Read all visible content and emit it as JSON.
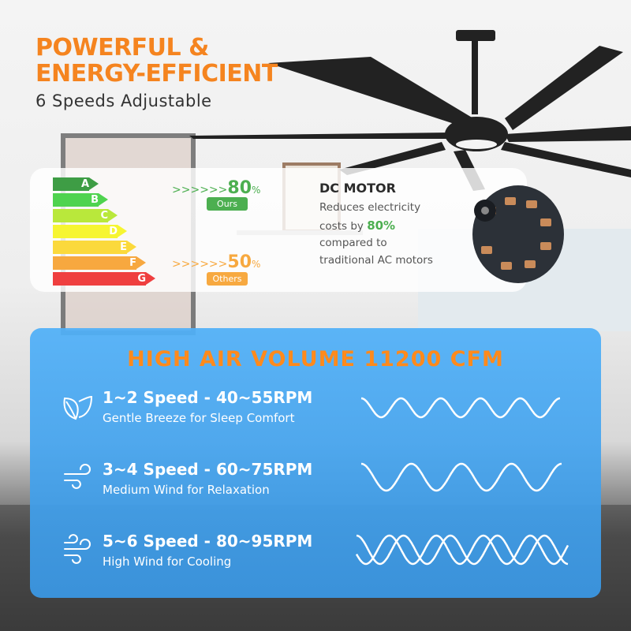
{
  "header": {
    "title_line1": "POWERFUL &",
    "title_line2": "ENERGY-EFFICIENT",
    "subtitle": "6 Speeds Adjustable"
  },
  "energy": {
    "classes": [
      {
        "label": "A",
        "color": "#3e9d45"
      },
      {
        "label": "B",
        "color": "#4fd34f"
      },
      {
        "label": "C",
        "color": "#b9e83b"
      },
      {
        "label": "D",
        "color": "#f6f532"
      },
      {
        "label": "E",
        "color": "#fbd93c"
      },
      {
        "label": "F",
        "color": "#f7a83f"
      },
      {
        "label": "G",
        "color": "#ef3f3f"
      }
    ],
    "ours": {
      "arrows": ">>>>>>",
      "value": "80",
      "unit": "%",
      "label": "Ours",
      "color": "#4caf50"
    },
    "others": {
      "arrows": ">>>>>>",
      "value": "50",
      "unit": "%",
      "label": "Others",
      "color": "#f7a940"
    }
  },
  "dc_motor": {
    "title": "DC MOTOR",
    "line1": "Reduces electricity",
    "line2_prefix": "costs by ",
    "line2_highlight": "80%",
    "line3": "compared to",
    "line4": "traditional AC motors"
  },
  "airflow": {
    "title": "HIGH AIR VOLUME 11200 CFM",
    "rows": [
      {
        "heading": "1~2 Speed - 40~55RPM",
        "desc": "Gentle Breeze for Sleep Comfort",
        "icon": "leaf-icon"
      },
      {
        "heading": "3~4 Speed - 60~75RPM",
        "desc": "Medium Wind for Relaxation",
        "icon": "wind-icon"
      },
      {
        "heading": "5~6 Speed - 80~95RPM",
        "desc": "High Wind for Cooling",
        "icon": "strong-wind-icon"
      }
    ]
  },
  "colors": {
    "accent": "#f5841f",
    "panel_blue": "#4aa8f0",
    "green": "#4caf50"
  }
}
